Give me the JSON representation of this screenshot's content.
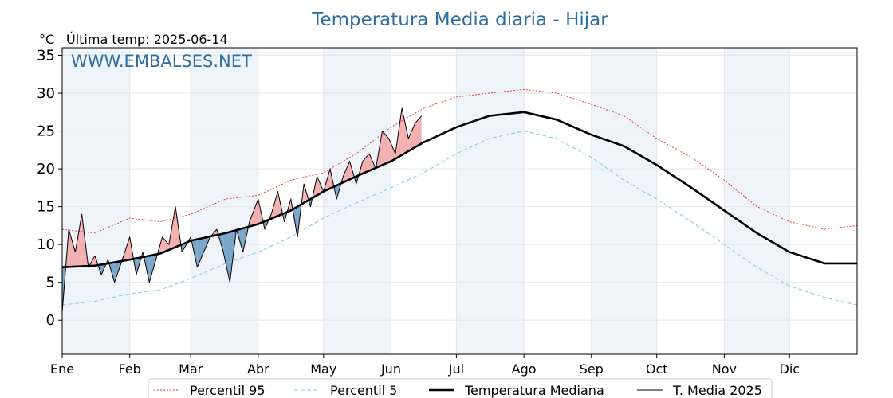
{
  "chart_data": {
    "type": "line",
    "title": "Temperatura Media diaria - Hijar",
    "unit_label": "°C",
    "last_temp_label": "Última temp: 2025-06-14",
    "watermark": "WWW.EMBALSES.NET",
    "ylim": [
      -4.5,
      36
    ],
    "yticks": [
      0,
      5,
      10,
      15,
      20,
      25,
      30,
      35
    ],
    "xlim": [
      0,
      365
    ],
    "months": [
      {
        "label": "Ene",
        "day": 0
      },
      {
        "label": "Feb",
        "day": 31
      },
      {
        "label": "Mar",
        "day": 59
      },
      {
        "label": "Abr",
        "day": 90
      },
      {
        "label": "May",
        "day": 120
      },
      {
        "label": "Jun",
        "day": 151
      },
      {
        "label": "Jul",
        "day": 181
      },
      {
        "label": "Ago",
        "day": 212
      },
      {
        "label": "Sep",
        "day": 243
      },
      {
        "label": "Oct",
        "day": 273
      },
      {
        "label": "Nov",
        "day": 304
      },
      {
        "label": "Dic",
        "day": 334
      }
    ],
    "grid": true,
    "shaded_months": [
      "Ene",
      "Mar",
      "May",
      "Jul",
      "Sep",
      "Nov"
    ],
    "legend_position": "bottom-center",
    "series": [
      {
        "name": "Percentil 95",
        "style": "dotted",
        "color": "#e0302a",
        "x": [
          0,
          15,
          31,
          45,
          59,
          75,
          90,
          105,
          120,
          135,
          151,
          166,
          181,
          196,
          212,
          227,
          243,
          258,
          273,
          289,
          304,
          319,
          334,
          350,
          365
        ],
        "y": [
          12,
          11.5,
          13.5,
          13,
          14,
          16,
          16.5,
          18.5,
          19.5,
          22,
          25.5,
          28,
          29.5,
          30,
          30.5,
          30,
          28.5,
          27,
          24,
          21.5,
          18.5,
          15,
          13,
          12,
          12.5
        ]
      },
      {
        "name": "Percentil 5",
        "style": "dashed",
        "color": "#8ec9df",
        "x": [
          0,
          15,
          31,
          45,
          59,
          75,
          90,
          105,
          120,
          135,
          151,
          166,
          181,
          196,
          212,
          227,
          243,
          258,
          273,
          289,
          304,
          319,
          334,
          350,
          365
        ],
        "y": [
          2,
          2.5,
          3.5,
          4,
          5.5,
          7.5,
          9,
          11,
          13.5,
          15.5,
          17.5,
          19.5,
          22,
          24,
          25,
          24,
          21.5,
          18.5,
          16,
          13,
          10,
          7,
          4.5,
          3,
          2
        ]
      },
      {
        "name": "Temperatura Mediana",
        "style": "thick",
        "color": "#000000",
        "x": [
          0,
          15,
          31,
          45,
          59,
          75,
          90,
          105,
          120,
          135,
          151,
          166,
          181,
          196,
          212,
          227,
          243,
          258,
          273,
          289,
          304,
          319,
          334,
          350,
          365
        ],
        "y": [
          7,
          7.2,
          8,
          8.8,
          10.5,
          11.5,
          12.7,
          14.5,
          17,
          19,
          21,
          23.5,
          25.5,
          27,
          27.5,
          26.5,
          24.5,
          23,
          20.5,
          17.5,
          14.5,
          11.5,
          9,
          7.5,
          7.5
        ]
      },
      {
        "name": "T. Media 2025",
        "style": "thin",
        "color": "#000000",
        "x": [
          0,
          3,
          6,
          9,
          12,
          15,
          18,
          21,
          24,
          27,
          31,
          34,
          37,
          40,
          43,
          46,
          49,
          52,
          55,
          59,
          62,
          65,
          68,
          71,
          74,
          77,
          80,
          83,
          86,
          90,
          93,
          96,
          99,
          102,
          105,
          108,
          111,
          114,
          117,
          120,
          123,
          126,
          129,
          132,
          135,
          138,
          141,
          144,
          147,
          150,
          153,
          156,
          159,
          162,
          165
        ],
        "y": [
          1,
          12,
          9,
          14,
          7,
          8.5,
          6,
          8,
          5,
          7.5,
          11,
          6,
          9,
          5,
          8,
          11,
          10,
          15,
          9,
          11,
          7,
          9,
          11,
          12,
          9,
          5,
          12,
          9,
          13,
          16,
          12,
          14,
          17,
          13,
          16,
          11,
          18,
          15,
          19,
          17,
          20,
          16,
          19,
          21,
          18,
          21,
          22,
          20,
          25,
          24,
          22,
          28,
          24,
          26,
          27
        ]
      }
    ]
  },
  "legend": {
    "items": [
      {
        "label": "Percentil 95",
        "color": "#e0302a",
        "style": "dotted"
      },
      {
        "label": "Percentil 5",
        "color": "#8ec9df",
        "style": "dashed"
      },
      {
        "label": "Temperatura Mediana",
        "color": "#000000",
        "style": "thick"
      },
      {
        "label": "T. Media 2025",
        "color": "#000000",
        "style": "thin"
      }
    ]
  }
}
